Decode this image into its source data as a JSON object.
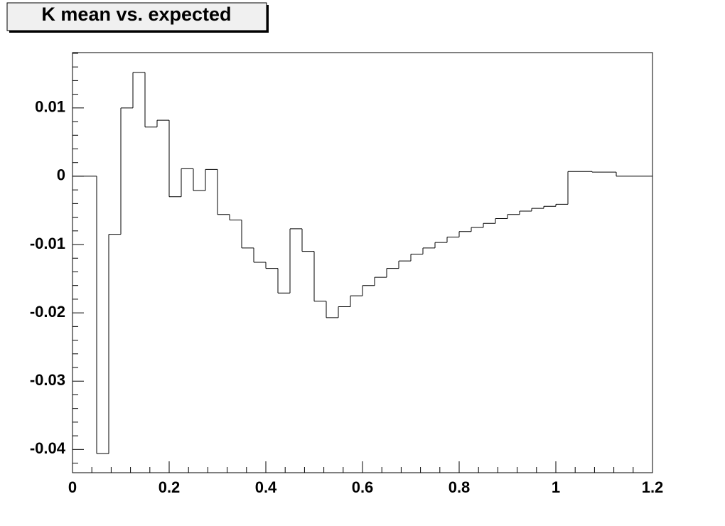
{
  "chart_data": {
    "type": "histogram",
    "title": "K mean vs. expected",
    "bins": [
      0,
      0.025,
      0.05,
      0.075,
      0.1,
      0.125,
      0.15,
      0.175,
      0.2,
      0.225,
      0.25,
      0.275,
      0.3,
      0.325,
      0.35,
      0.375,
      0.4,
      0.425,
      0.45,
      0.475,
      0.5,
      0.525,
      0.55,
      0.575,
      0.6,
      0.625,
      0.65,
      0.675,
      0.7,
      0.725,
      0.75,
      0.775,
      0.8,
      0.825,
      0.85,
      0.875,
      0.9,
      0.925,
      0.95,
      0.975,
      1,
      1.025,
      1.05,
      1.075,
      1.1,
      1.125,
      1.15,
      1.175,
      1.2
    ],
    "values": [
      0,
      0,
      -0.0406,
      -0.0085,
      0.01,
      0.0152,
      0.0072,
      0.0082,
      -0.003,
      0.0011,
      -0.0021,
      0.001,
      -0.0056,
      -0.0064,
      -0.0105,
      -0.0126,
      -0.0135,
      -0.0171,
      -0.0077,
      -0.011,
      -0.0183,
      -0.0207,
      -0.0191,
      -0.0175,
      -0.016,
      -0.0148,
      -0.0135,
      -0.0124,
      -0.0114,
      -0.0105,
      -0.0097,
      -0.0089,
      -0.0081,
      -0.0075,
      -0.0069,
      -0.0062,
      -0.0056,
      -0.0051,
      -0.0047,
      -0.0044,
      -0.0041,
      0.0007,
      0.0007,
      0.0006,
      0.0006,
      0,
      0,
      0
    ],
    "color": "#000000",
    "xlim": [
      0,
      1.2
    ],
    "xticks": [
      0,
      0.2,
      0.4,
      0.6,
      0.8,
      1,
      1.2
    ],
    "ylim": [
      -0.0434,
      0.0181
    ],
    "yticks": [
      -0.04,
      -0.03,
      -0.02,
      -0.01,
      0,
      0.01
    ]
  }
}
